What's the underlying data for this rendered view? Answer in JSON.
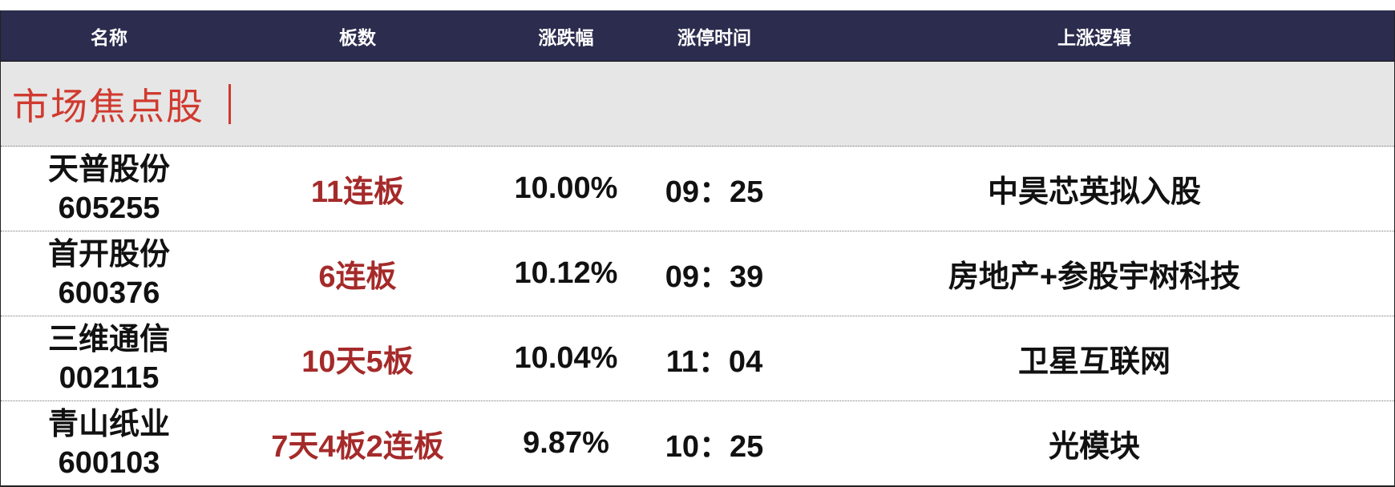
{
  "header": {
    "columns": [
      "名称",
      "板数",
      "涨跌幅",
      "涨停时间",
      "上涨逻辑"
    ]
  },
  "section": {
    "title": "市场焦点股"
  },
  "rows": [
    {
      "name": "天普股份",
      "code": "605255",
      "boards": "11连板",
      "change": "10.00%",
      "time": "09：25",
      "logic": "中昊芯英拟入股"
    },
    {
      "name": "首开股份",
      "code": "600376",
      "boards": "6连板",
      "change": "10.12%",
      "time": "09：39",
      "logic": "房地产+参股宇树科技"
    },
    {
      "name": "三维通信",
      "code": "002115",
      "boards": "10天5板",
      "change": "10.04%",
      "time": "11：04",
      "logic": "卫星互联网"
    },
    {
      "name": "青山纸业",
      "code": "600103",
      "boards": "7天4板2连板",
      "change": "9.87%",
      "time": "10：25",
      "logic": "光模块"
    }
  ],
  "colors": {
    "header_bg": "#2b2c4e",
    "title_red": "#d03a2f",
    "boards_red": "#a52a2a",
    "band_bg": "#e6e6e6"
  }
}
